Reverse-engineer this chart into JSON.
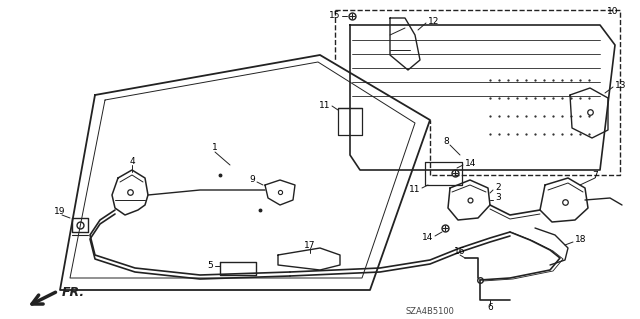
{
  "bg_color": "#ffffff",
  "line_color": "#222222",
  "diagram_code": "SZA4B5100",
  "fr_label": "FR.",
  "figsize": [
    6.4,
    3.19
  ],
  "dpi": 100
}
